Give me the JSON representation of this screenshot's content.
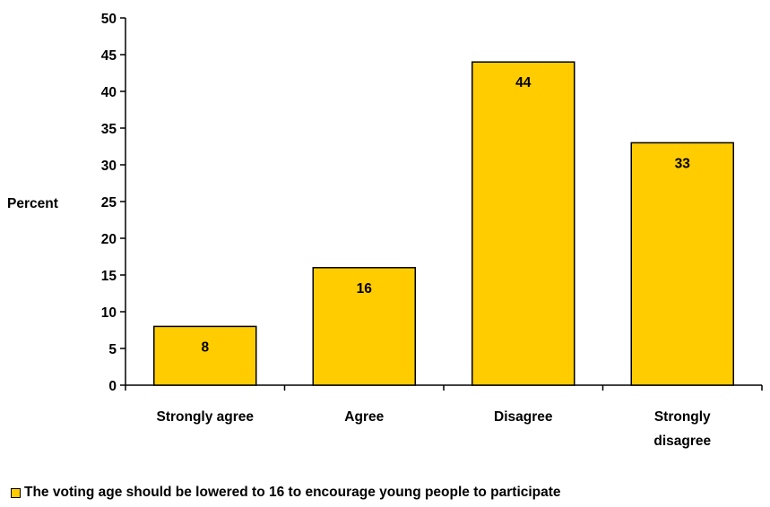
{
  "chart_data": {
    "type": "bar",
    "title": "",
    "xlabel": "",
    "ylabel": "Percent",
    "ylim": [
      0,
      50
    ],
    "yticks": [
      0,
      5,
      10,
      15,
      20,
      25,
      30,
      35,
      40,
      45,
      50
    ],
    "categories": [
      "Strongly agree",
      "Agree",
      "Disagree",
      "Strongly disagree"
    ],
    "series": [
      {
        "name": "The voting age should be lowered to 16 to encourage young people to participate",
        "values": [
          8,
          16,
          44,
          33
        ],
        "color": "#FFCC00"
      }
    ],
    "data_labels": [
      "8",
      "16",
      "44",
      "33"
    ],
    "grid": false,
    "legend_position": "bottom"
  }
}
